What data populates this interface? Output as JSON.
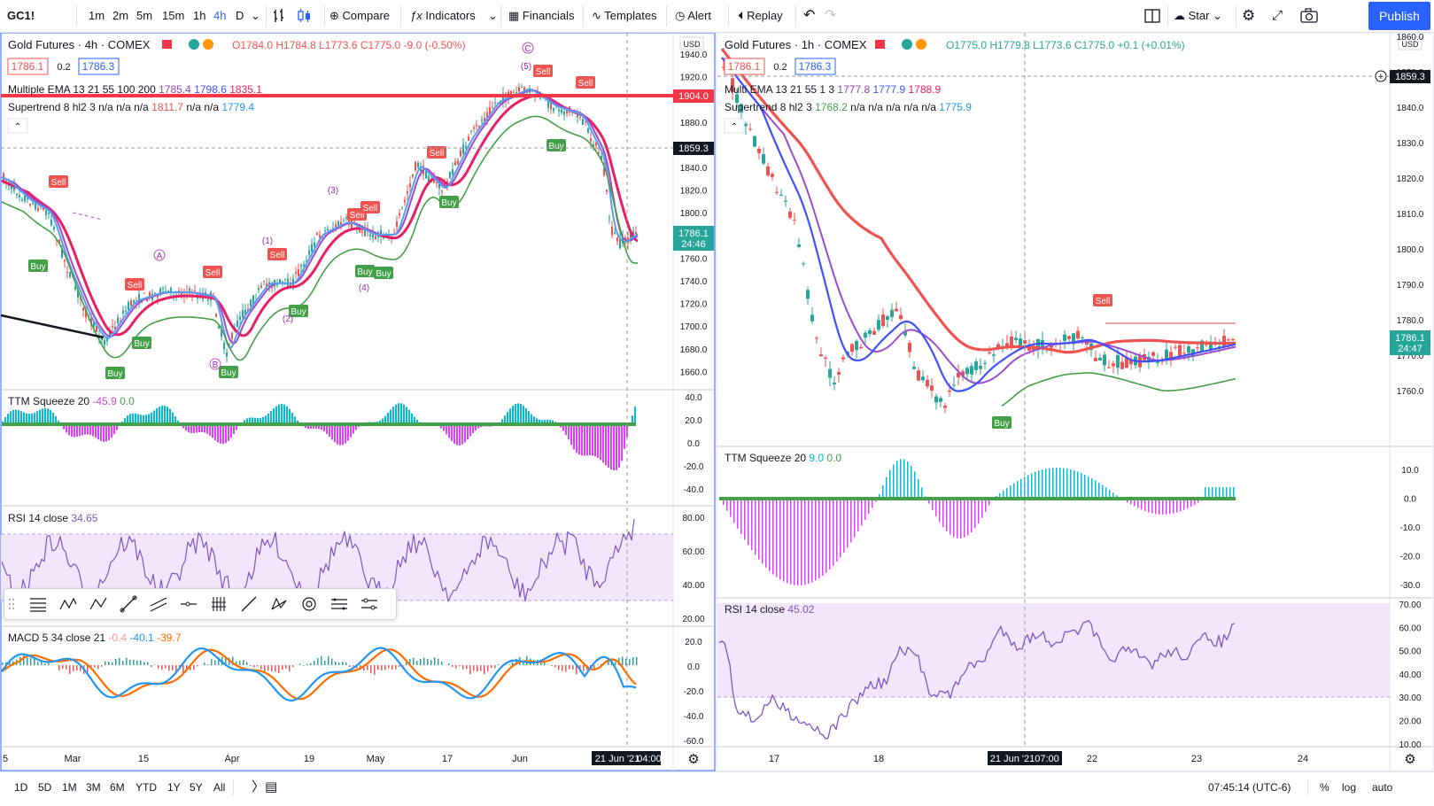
{
  "toolbar": {
    "symbol": "GC1!",
    "intervals": [
      "1m",
      "2m",
      "5m",
      "15m",
      "1h",
      "4h",
      "D"
    ],
    "active_interval": "4h",
    "compare": "Compare",
    "indicators": "Indicators",
    "financials": "Financials",
    "templates": "Templates",
    "alert": "Alert",
    "replay": "Replay",
    "layout_name": "Star",
    "publish": "Publish"
  },
  "left_chart": {
    "title": "Gold Futures · 4h · COMEX",
    "ohlc": {
      "o": "O1784.0",
      "h": "H1784.8",
      "l": "L1773.6",
      "c": "C1775.0",
      "chg": "-9.0 (-0.50%)"
    },
    "bid": "1786.1",
    "spread": "0.2",
    "ask": "1786.3",
    "ema_label": "Multiple EMA 13 21 55 100 200",
    "ema_values": [
      "1785.4",
      "1798.6",
      "1835.1"
    ],
    "st_label": "Supertrend 8 hl2 3",
    "st_values": [
      "n/a n/a n/a",
      "1811.7",
      "n/a n/a",
      "1779.4"
    ],
    "currency": "USD",
    "price_ticks": [
      "1940.0",
      "1920.0",
      "1900.0",
      "1880.0",
      "1860.0",
      "1840.0",
      "1820.0",
      "1800.0",
      "1780.0",
      "1760.0",
      "1740.0",
      "1720.0",
      "1700.0",
      "1680.0",
      "1660.0"
    ],
    "tag_red": "1904.0",
    "tag_dark": "1859.3",
    "tag_last": "1786.1",
    "tag_countdown": "24:46",
    "time_ticks": [
      "5",
      "Mar",
      "15",
      "Apr",
      "19",
      "May",
      "17",
      "Jun"
    ],
    "crosshair_date": "21 Jun '21",
    "crosshair_time": "04:00",
    "wave_labels": [
      "A",
      "(3)",
      "(1)",
      "(2)",
      "(4)",
      "B",
      "C",
      "(5)"
    ],
    "ttm_label": "TTM Squeeze 20",
    "ttm_values": [
      "-45.9",
      "0.0"
    ],
    "ttm_ticks": [
      "40.0",
      "20.0",
      "0.0",
      "-20.0",
      "-40.0"
    ],
    "rsi_label": "RSI 14 close",
    "rsi_value": "34.65",
    "rsi_ticks": [
      "80.00",
      "60.00",
      "40.00",
      "20.00"
    ],
    "macd_label": "MACD 5 34 close 21",
    "macd_values": [
      "-0.4",
      "-40.1",
      "-39.7"
    ],
    "macd_ticks": [
      "20.0",
      "0.0",
      "-20.0",
      "-40.0",
      "-60.0"
    ]
  },
  "right_chart": {
    "title": "Gold Futures · 1h · COMEX",
    "ohlc": {
      "o": "O1775.0",
      "h": "H1779.8",
      "l": "L1773.6",
      "c": "C1775.0",
      "chg": "+0.1 (+0.01%)"
    },
    "bid": "1786.1",
    "spread": "0.2",
    "ask": "1786.3",
    "ema_label": "Multi EMA 13 21 55 1 3",
    "ema_values": [
      "1777.8",
      "1777.9",
      "1788.9"
    ],
    "st_label": "Supertrend 8 hl2 3",
    "st_values": [
      "1768.2",
      "n/a n/a n/a n/a n/a",
      "1775.9"
    ],
    "currency": "USD",
    "price_ticks": [
      "1860.0",
      "1850.0",
      "1840.0",
      "1830.0",
      "1820.0",
      "1810.0",
      "1800.0",
      "1790.0",
      "1780.0",
      "1770.0",
      "1760.0"
    ],
    "tag_dark": "1859.3",
    "tag_last": "1786.1",
    "tag_countdown": "24:47",
    "time_ticks": [
      "17",
      "18",
      "22",
      "23",
      "24"
    ],
    "crosshair_date": "21 Jun '21",
    "crosshair_time": "07:00",
    "ttm_label": "TTM Squeeze 20",
    "ttm_values": [
      "9.0",
      "0.0"
    ],
    "ttm_ticks": [
      "10.0",
      "0.0",
      "-10.0",
      "-20.0",
      "-30.0"
    ],
    "rsi_label": "RSI 14 close",
    "rsi_value": "45.02",
    "rsi_ticks": [
      "70.00",
      "60.00",
      "50.00",
      "40.00",
      "30.00",
      "20.00",
      "10.00"
    ]
  },
  "signals": {
    "buy": "Buy",
    "sell": "Sell"
  },
  "bottom": {
    "ranges": [
      "1D",
      "5D",
      "1M",
      "3M",
      "6M",
      "YTD",
      "1Y",
      "5Y",
      "All"
    ],
    "time": "07:45:14 (UTC-6)",
    "percent": "%",
    "log": "log",
    "auto": "auto"
  },
  "colors": {
    "accent": "#2962ff",
    "up": "#26a69a",
    "down": "#ef5350",
    "ema_fast": "#3f51ff",
    "ema_mid": "#9c4dcc",
    "ema_slow": "#e91e63",
    "supertrend_up": "#43a047",
    "supertrend_down": "#f06b6b",
    "ttm_pos": "#00bcd4",
    "ttm_neg": "#e040fb",
    "rsi": "#7e57c2",
    "macd": "#2196f3",
    "signal": "#ff6d00"
  },
  "icons": [
    "bar-style-icon",
    "undo-icon",
    "redo-icon",
    "fullscreen-icon",
    "camera-icon",
    "settings-icon",
    "layout-icon"
  ]
}
